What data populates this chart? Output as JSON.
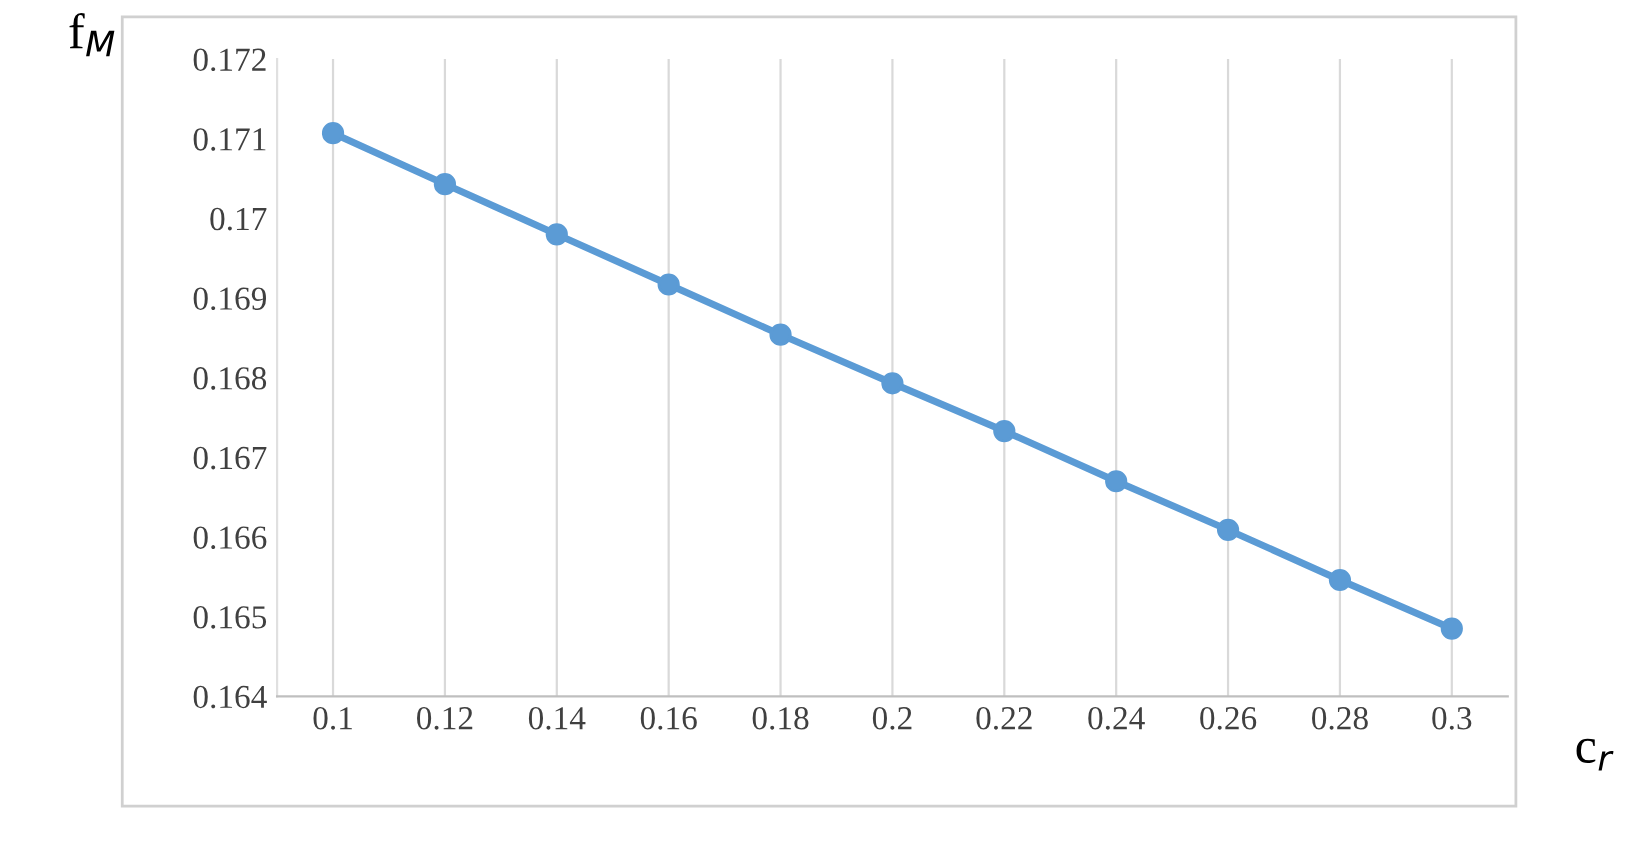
{
  "chart_data": {
    "type": "line",
    "xlabel": "c$_{r}$",
    "ylabel": "f$_{M}$",
    "categories": [
      "0.1",
      "0.12",
      "0.14",
      "0.16",
      "0.18",
      "0.2",
      "0.22",
      "0.24",
      "0.26",
      "0.28",
      "0.3"
    ],
    "series": [
      {
        "color": "#5b9bd5",
        "values": [
          0.17107,
          0.17043,
          0.1698,
          0.16917,
          0.16854,
          0.16793,
          0.16733,
          0.1667,
          0.16609,
          0.16546,
          0.16485
        ]
      }
    ],
    "ylim": [
      0.164,
      0.172
    ],
    "yticks": [
      0.164,
      0.165,
      0.166,
      0.167,
      0.168,
      0.169,
      0.17,
      0.171,
      0.172
    ],
    "marker": "circle",
    "line_style": "solid",
    "grid": "x",
    "legend": false
  }
}
